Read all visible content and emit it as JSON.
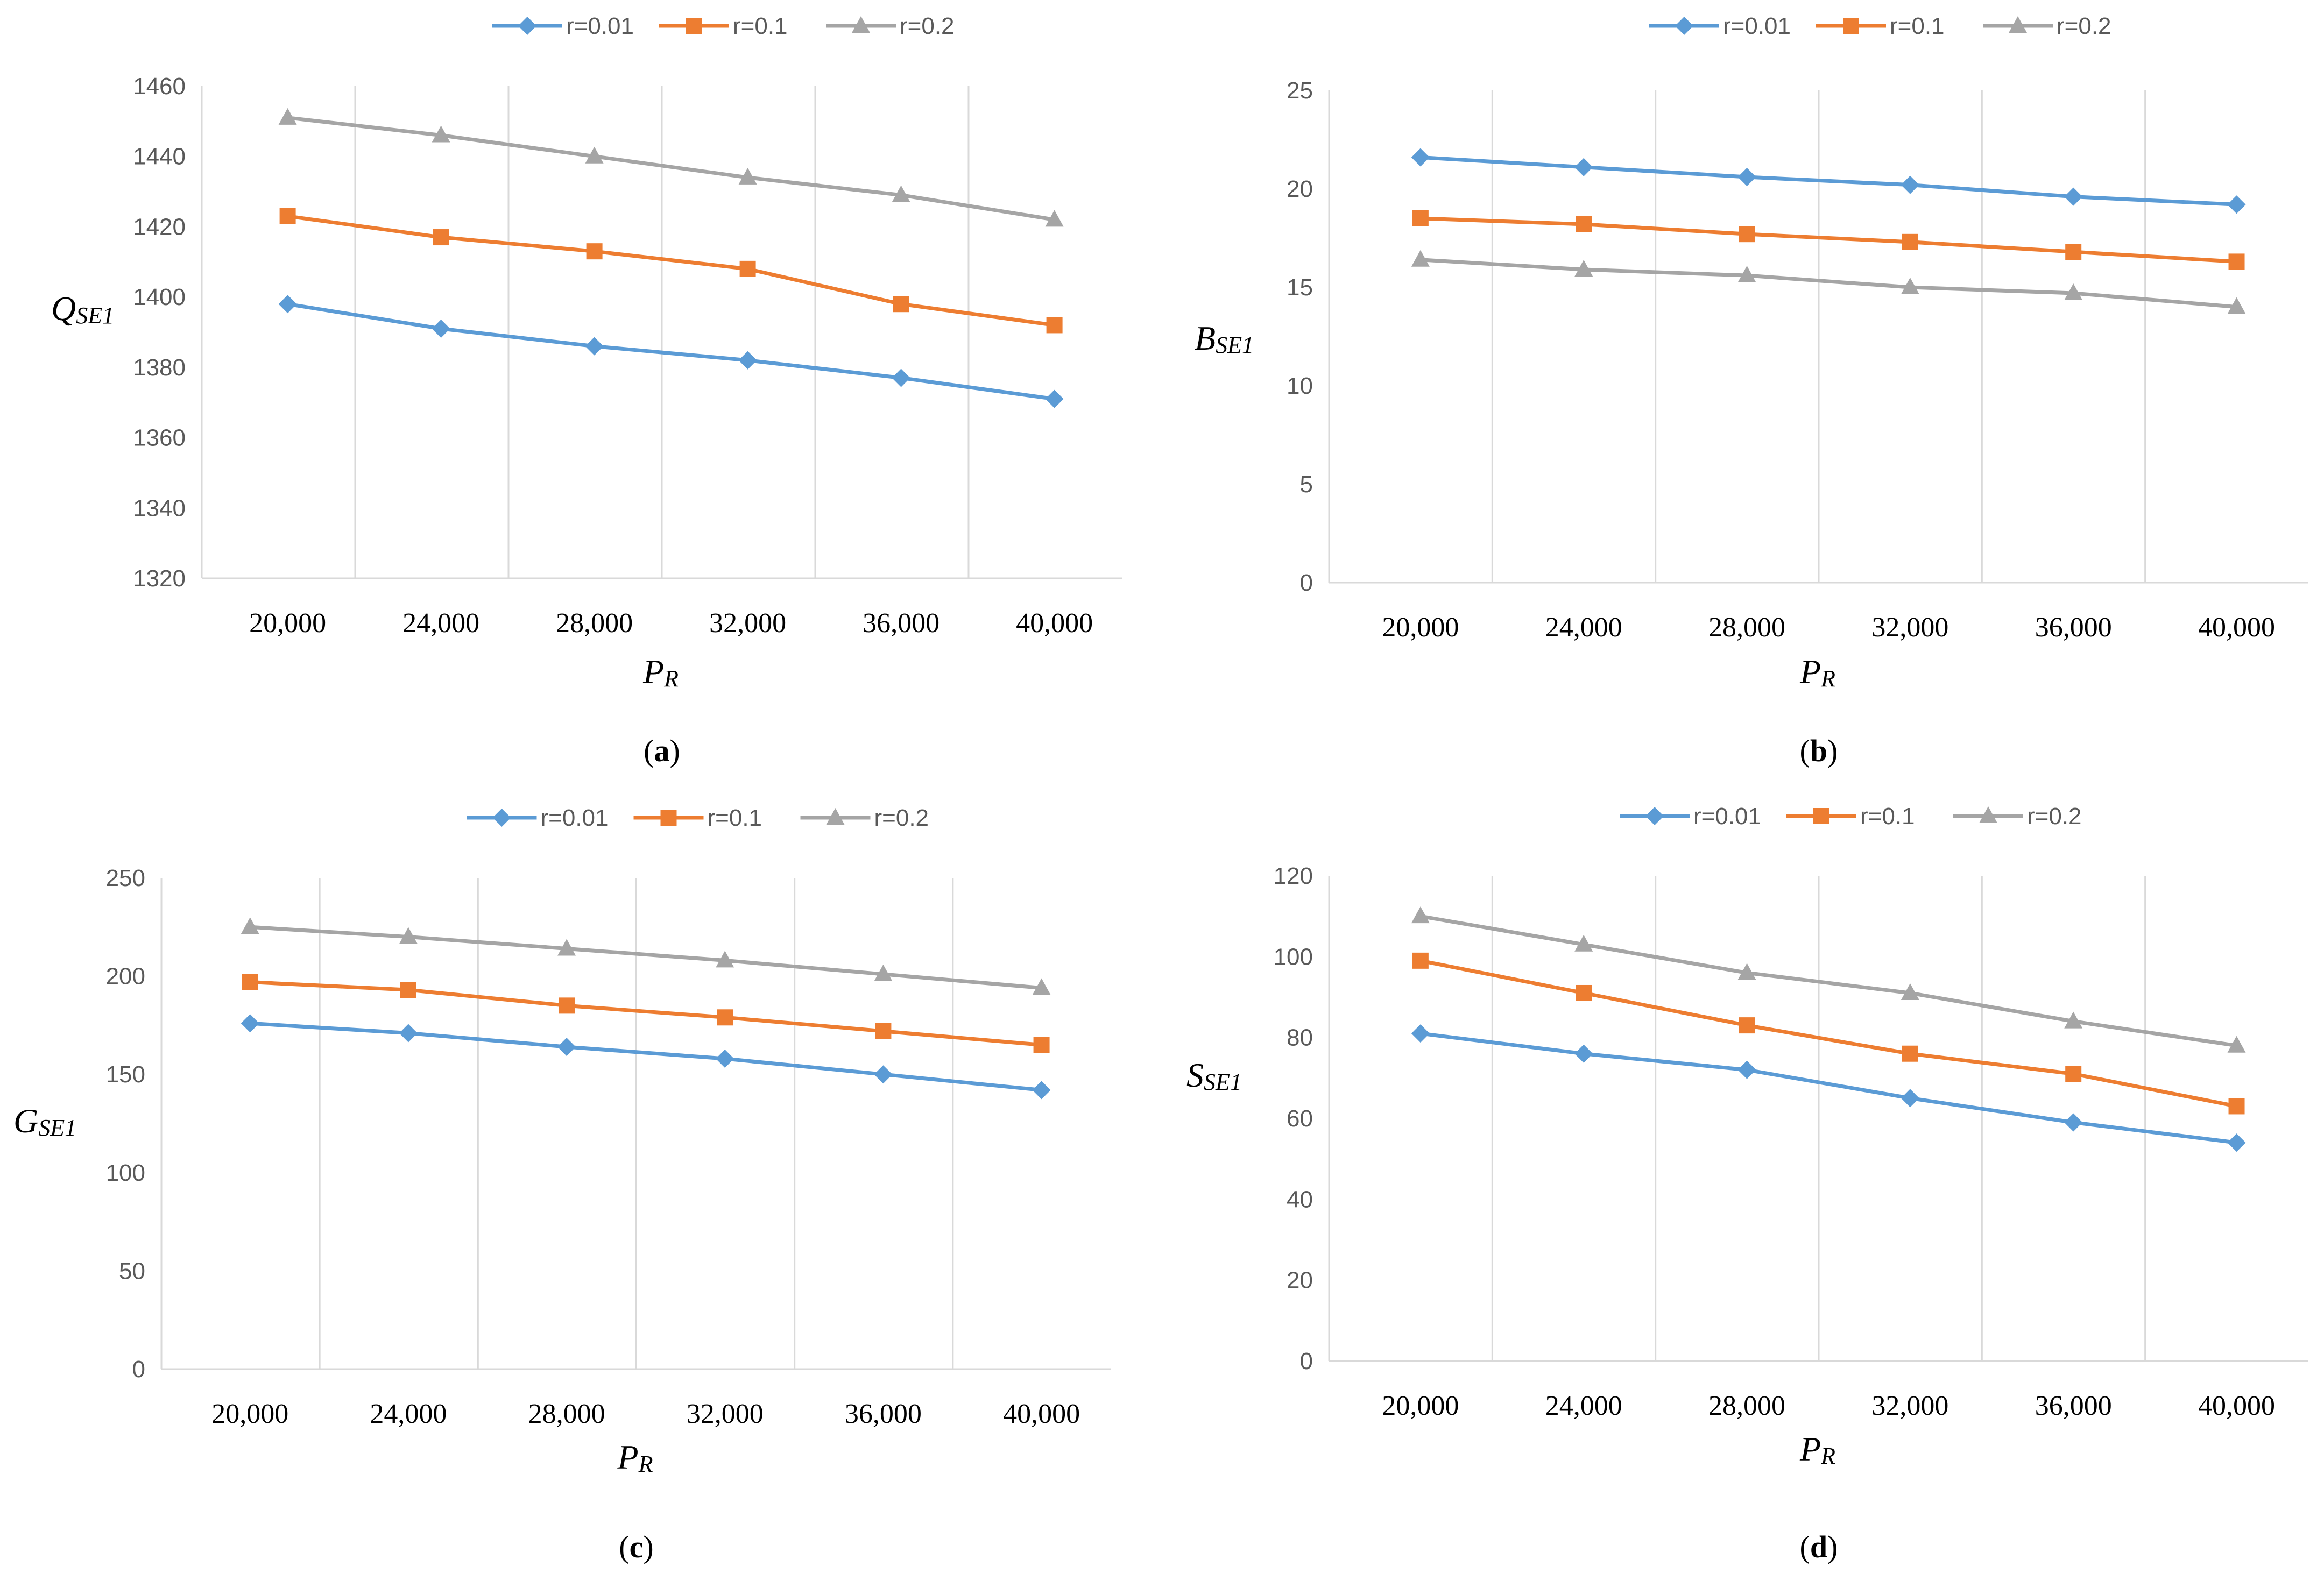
{
  "chart_data": [
    {
      "type": "line",
      "panel": "a",
      "caption": "a",
      "xlabel_main": "P",
      "xlabel_sub": "R",
      "ylabel_main": "Q",
      "ylabel_sub": "SE1",
      "categories": [
        "20,000",
        "24,000",
        "28,000",
        "32,000",
        "36,000",
        "40,000"
      ],
      "y_ticks": [
        "1320",
        "1340",
        "1360",
        "1380",
        "1400",
        "1420",
        "1440",
        "1460"
      ],
      "ylim": [
        1320,
        1460
      ],
      "grid": "vertical",
      "legend": "top-center",
      "series": [
        {
          "name": "r=0.01",
          "color": "#5B9BD5",
          "marker": "diamond",
          "values": [
            1398,
            1391,
            1386,
            1382,
            1377,
            1371
          ]
        },
        {
          "name": "r=0.1",
          "color": "#ED7D31",
          "marker": "square",
          "values": [
            1423,
            1417,
            1413,
            1408,
            1398,
            1392
          ]
        },
        {
          "name": "r=0.2",
          "color": "#A5A5A5",
          "marker": "triangle",
          "values": [
            1451,
            1446,
            1440,
            1434,
            1429,
            1422
          ]
        }
      ]
    },
    {
      "type": "line",
      "panel": "b",
      "caption": "b",
      "xlabel_main": "P",
      "xlabel_sub": "R",
      "ylabel_main": "B",
      "ylabel_sub": "SE1",
      "categories": [
        "20,000",
        "24,000",
        "28,000",
        "32,000",
        "36,000",
        "40,000"
      ],
      "y_ticks": [
        "0",
        "5",
        "10",
        "15",
        "20",
        "25"
      ],
      "ylim": [
        0,
        25
      ],
      "grid": "vertical",
      "legend": "top-center",
      "series": [
        {
          "name": "r=0.01",
          "color": "#5B9BD5",
          "marker": "diamond",
          "values": [
            21.6,
            21.1,
            20.6,
            20.2,
            19.6,
            19.2
          ]
        },
        {
          "name": "r=0.1",
          "color": "#ED7D31",
          "marker": "square",
          "values": [
            18.5,
            18.2,
            17.7,
            17.3,
            16.8,
            16.3
          ]
        },
        {
          "name": "r=0.2",
          "color": "#A5A5A5",
          "marker": "triangle",
          "values": [
            16.4,
            15.9,
            15.6,
            15.0,
            14.7,
            14.0
          ]
        }
      ]
    },
    {
      "type": "line",
      "panel": "c",
      "caption": "c",
      "xlabel_main": "P",
      "xlabel_sub": "R",
      "ylabel_main": "G",
      "ylabel_sub": "SE1",
      "categories": [
        "20,000",
        "24,000",
        "28,000",
        "32,000",
        "36,000",
        "40,000"
      ],
      "y_ticks": [
        "0",
        "50",
        "100",
        "150",
        "200",
        "250"
      ],
      "ylim": [
        0,
        250
      ],
      "grid": "vertical",
      "legend": "top-center",
      "series": [
        {
          "name": "r=0.01",
          "color": "#5B9BD5",
          "marker": "diamond",
          "values": [
            176,
            171,
            164,
            158,
            150,
            142
          ]
        },
        {
          "name": "r=0.1",
          "color": "#ED7D31",
          "marker": "square",
          "values": [
            197,
            193,
            185,
            179,
            172,
            165
          ]
        },
        {
          "name": "r=0.2",
          "color": "#A5A5A5",
          "marker": "triangle",
          "values": [
            225,
            220,
            214,
            208,
            201,
            194
          ]
        }
      ]
    },
    {
      "type": "line",
      "panel": "d",
      "caption": "d",
      "xlabel_main": "P",
      "xlabel_sub": "R",
      "ylabel_main": "S",
      "ylabel_sub": "SE1",
      "categories": [
        "20,000",
        "24,000",
        "28,000",
        "32,000",
        "36,000",
        "40,000"
      ],
      "y_ticks": [
        "0",
        "20",
        "40",
        "60",
        "80",
        "100",
        "120"
      ],
      "ylim": [
        0,
        120
      ],
      "grid": "vertical",
      "legend": "top-center",
      "series": [
        {
          "name": "r=0.01",
          "color": "#5B9BD5",
          "marker": "diamond",
          "values": [
            81,
            76,
            72,
            65,
            59,
            54
          ]
        },
        {
          "name": "r=0.1",
          "color": "#ED7D31",
          "marker": "square",
          "values": [
            99,
            91,
            83,
            76,
            71,
            63
          ]
        },
        {
          "name": "r=0.2",
          "color": "#A5A5A5",
          "marker": "triangle",
          "values": [
            110,
            103,
            96,
            91,
            84,
            78
          ]
        }
      ]
    }
  ]
}
